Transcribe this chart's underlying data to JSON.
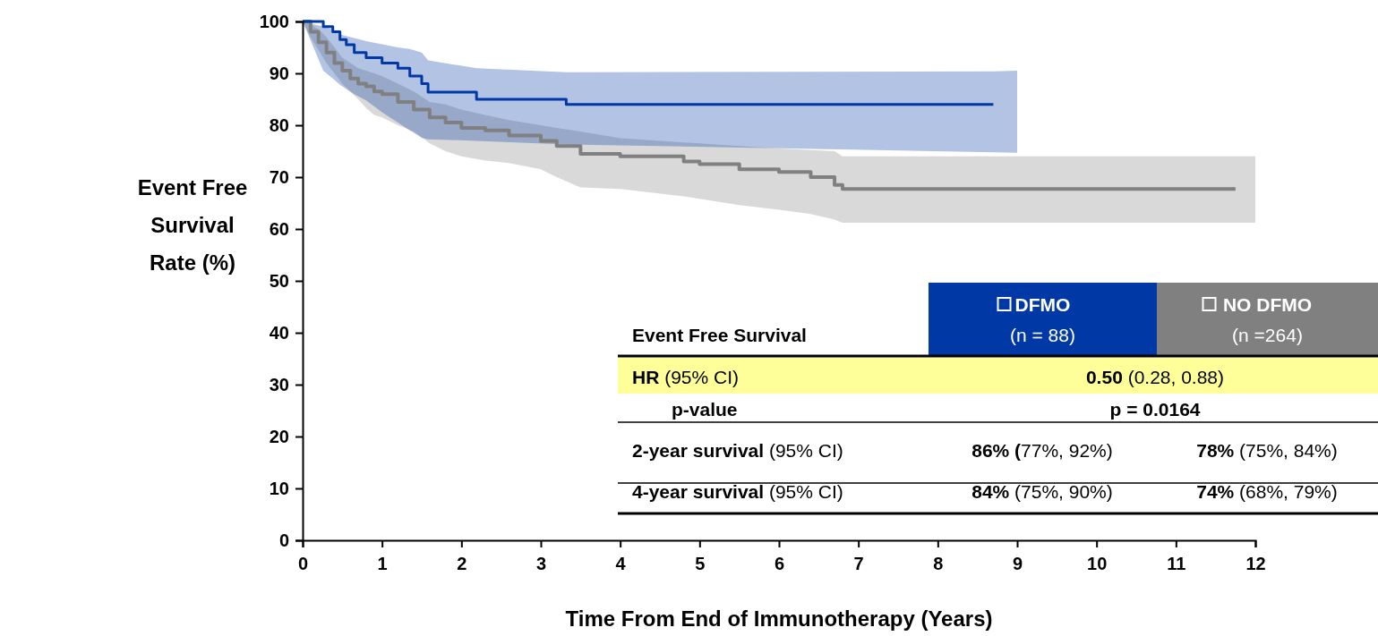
{
  "chart_data": {
    "type": "step",
    "xlabel": "Time From End of Immunotherapy (Years)",
    "ylabel": "Event Free Survival Rate (%)",
    "xlim": [
      0,
      12
    ],
    "xticks": [
      0,
      1,
      2,
      3,
      4,
      5,
      6,
      7,
      8,
      9,
      10,
      11,
      12
    ],
    "ylim": [
      0,
      100
    ],
    "yticks": [
      0,
      10,
      20,
      30,
      40,
      50,
      60,
      70,
      80,
      90,
      100
    ],
    "grid": false,
    "legend": "bottom right",
    "marker": "none",
    "line_style": "solid",
    "series": [
      {
        "name": "NO DFMO",
        "color": "#808080",
        "x": [
          0,
          0.1,
          0.2,
          0.3,
          0.4,
          0.5,
          0.6,
          0.7,
          0.8,
          0.9,
          1,
          1.2,
          1.4,
          1.6,
          1.8,
          2,
          2.3,
          2.6,
          3,
          3.2,
          3.5,
          4,
          4.8,
          5,
          5.5,
          6,
          6.4,
          6.7,
          6.8,
          11.75,
          12
        ],
        "values": [
          100,
          98,
          96,
          94,
          92,
          90.5,
          89,
          88,
          87.5,
          86.5,
          86,
          84.5,
          83,
          81.5,
          80.5,
          79.5,
          79,
          78,
          77,
          76,
          74.5,
          74,
          73,
          72.5,
          71.5,
          71,
          70,
          68.5,
          67.7,
          67.7,
          null
        ],
        "lower": [
          100,
          97,
          94.5,
          92,
          90,
          88,
          86.5,
          85,
          83.3,
          82,
          81.5,
          80,
          78.8,
          76.5,
          75,
          74,
          73.2,
          72.7,
          71.5,
          70,
          68,
          67.7,
          66.3,
          65.8,
          64.6,
          63.7,
          62.9,
          61.8,
          61.2,
          61.2,
          61.2
        ],
        "upper": [
          100,
          99.5,
          98.5,
          97,
          95,
          93,
          92,
          91,
          90.5,
          90,
          89.5,
          88,
          86.5,
          84.5,
          84,
          83,
          82,
          81,
          80,
          79.5,
          78.8,
          77.5,
          76.7,
          76.5,
          76,
          75.5,
          75.2,
          75,
          74,
          74,
          74
        ]
      },
      {
        "name": "DFMO",
        "color": "#0039a6",
        "x": [
          0,
          0.26,
          0.38,
          0.47,
          0.55,
          0.65,
          0.8,
          1,
          1.2,
          1.35,
          1.5,
          1.58,
          2.19,
          3.32,
          8.7,
          9
        ],
        "values": [
          100,
          99,
          98,
          96.5,
          95.5,
          94,
          93,
          92,
          91,
          89.5,
          88,
          86.4,
          85,
          84,
          84,
          null
        ],
        "lower": [
          100,
          90.5,
          89,
          87.8,
          87,
          86,
          84.8,
          82.5,
          80.5,
          79,
          77.6,
          77.3,
          77,
          76.3,
          74.8,
          74.7
        ],
        "upper": [
          100,
          99,
          98.5,
          97.5,
          97.2,
          96.8,
          96.2,
          95.6,
          95,
          94.7,
          94,
          92.5,
          91,
          90.2,
          90.4,
          90.5
        ]
      }
    ],
    "annotations": [
      "Event Free Survival",
      "(n = 88)",
      "(n =264)",
      "HR",
      "(95% CI)",
      "0.50",
      "(0.28, 0.88)",
      "p-value",
      "p = 0.0164",
      "2-year survival",
      "(95% CI)",
      "86% (",
      "77%, 92%)",
      "78%",
      "(75%, 84%)",
      "4-year survival",
      "(95% CI)",
      "84%",
      "(75%, 90%)",
      "74%",
      "(68%, 79%)"
    ]
  }
}
